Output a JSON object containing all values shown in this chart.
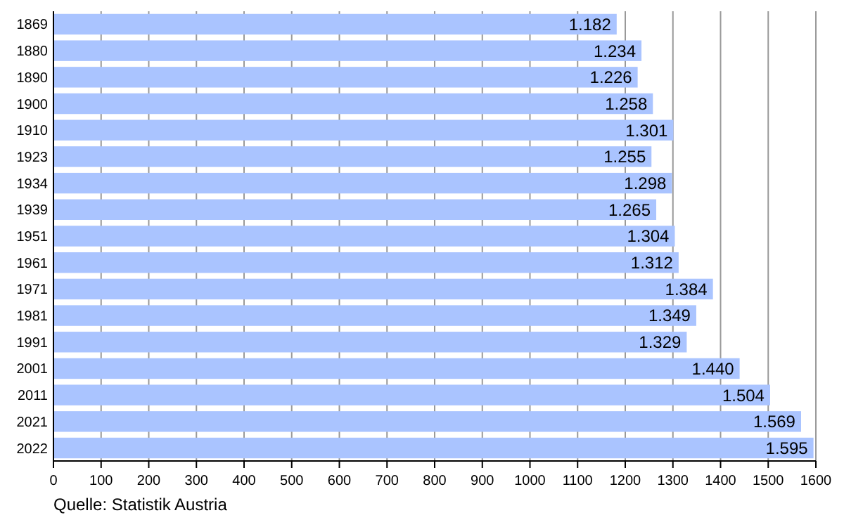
{
  "chart_data": {
    "type": "bar",
    "orientation": "horizontal",
    "categories": [
      "1869",
      "1880",
      "1890",
      "1900",
      "1910",
      "1923",
      "1934",
      "1939",
      "1951",
      "1961",
      "1971",
      "1981",
      "1991",
      "2001",
      "2011",
      "2021",
      "2022"
    ],
    "values": [
      1182,
      1234,
      1226,
      1258,
      1301,
      1255,
      1298,
      1265,
      1304,
      1312,
      1384,
      1349,
      1329,
      1440,
      1504,
      1569,
      1595
    ],
    "value_labels": [
      "1.182",
      "1.234",
      "1.226",
      "1.258",
      "1.301",
      "1.255",
      "1.298",
      "1.265",
      "1.304",
      "1.312",
      "1.384",
      "1.349",
      "1.329",
      "1.440",
      "1.504",
      "1.569",
      "1.595"
    ],
    "color": "#aac4ff",
    "xlim": [
      0,
      1600
    ],
    "xticks": [
      0,
      100,
      200,
      300,
      400,
      500,
      600,
      700,
      800,
      900,
      1000,
      1100,
      1200,
      1300,
      1400,
      1500,
      1600
    ],
    "grid": "x",
    "annotations": [
      "Quelle: Statistik Austria"
    ]
  }
}
